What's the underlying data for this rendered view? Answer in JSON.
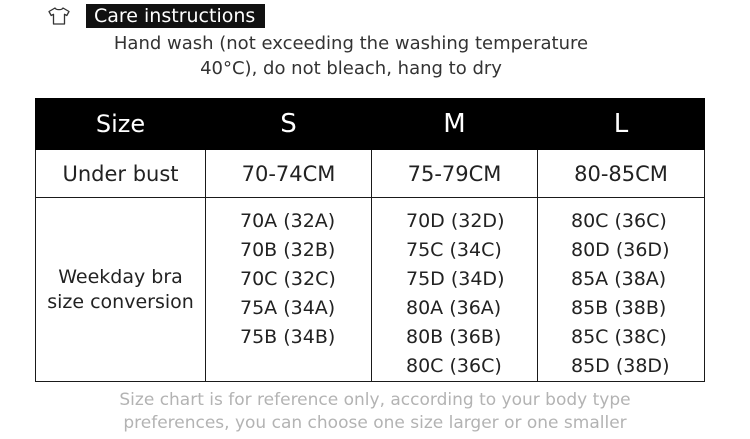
{
  "care": {
    "icon": "t-shirt-icon",
    "title": "Care instructions",
    "line1": "Hand wash (not exceeding the washing temperature",
    "line2": "40°C), do not bleach, hang to dry"
  },
  "table": {
    "header_label": "Size",
    "sizes": [
      "S",
      "M",
      "L"
    ],
    "under_bust": {
      "label": "Under bust",
      "values": [
        "70-74CM",
        "75-79CM",
        "80-85CM"
      ]
    },
    "conversion": {
      "label_line1": "Weekday bra",
      "label_line2": "size conversion",
      "S": [
        "70A (32A)",
        "70B (32B)",
        "70C (32C)",
        "75A (34A)",
        "75B (34B)"
      ],
      "M": [
        "70D (32D)",
        "75C (34C)",
        "75D (34D)",
        "80A (36A)",
        "80B (36B)",
        "80C (36C)"
      ],
      "L": [
        "80C (36C)",
        "80D (36D)",
        "85A (38A)",
        "85B (38B)",
        "85C (38C)",
        "85D (38D)"
      ]
    }
  },
  "note": {
    "line1": "Size chart is for reference only, according to your body type",
    "line2": "preferences, you can choose one size larger or one smaller"
  },
  "colors": {
    "header_bg": "#000000",
    "header_text": "#ffffff",
    "border": "#1a1a1a",
    "note_text": "#b3b3b3"
  }
}
